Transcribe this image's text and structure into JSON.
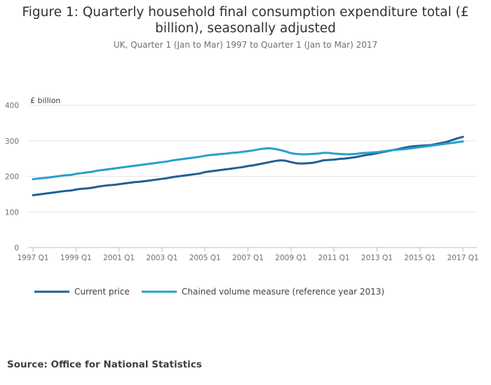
{
  "title": {
    "line1": "Figure 1: Quarterly household final consumption expenditure total (£",
    "line2": "billion), seasonally adjusted"
  },
  "subtitle": "UK, Quarter 1 (Jan to Mar) 1997 to Quarter 1 (Jan to Mar) 2017",
  "source": "Source: Office for National Statistics",
  "chart_data": {
    "type": "line",
    "title": "Figure 1: Quarterly household final consumption expenditure total (£ billion), seasonally adjusted",
    "subtitle": "UK, Quarter 1 (Jan to Mar) 1997 to Quarter 1 (Jan to Mar) 2017",
    "ylabel": "£ billion",
    "ylim": [
      0,
      400
    ],
    "yticks": [
      0,
      100,
      200,
      300,
      400
    ],
    "xticks": [
      "1997 Q1",
      "1999 Q1",
      "2001 Q1",
      "2003 Q1",
      "2005 Q1",
      "2007 Q1",
      "2009 Q1",
      "2011 Q1",
      "2013 Q1",
      "2015 Q1",
      "2017 Q1"
    ],
    "grid": true,
    "legend": "bottom",
    "x": [
      "1997 Q1",
      "1997 Q2",
      "1997 Q3",
      "1997 Q4",
      "1998 Q1",
      "1998 Q2",
      "1998 Q3",
      "1998 Q4",
      "1999 Q1",
      "1999 Q2",
      "1999 Q3",
      "1999 Q4",
      "2000 Q1",
      "2000 Q2",
      "2000 Q3",
      "2000 Q4",
      "2001 Q1",
      "2001 Q2",
      "2001 Q3",
      "2001 Q4",
      "2002 Q1",
      "2002 Q2",
      "2002 Q3",
      "2002 Q4",
      "2003 Q1",
      "2003 Q2",
      "2003 Q3",
      "2003 Q4",
      "2004 Q1",
      "2004 Q2",
      "2004 Q3",
      "2004 Q4",
      "2005 Q1",
      "2005 Q2",
      "2005 Q3",
      "2005 Q4",
      "2006 Q1",
      "2006 Q2",
      "2006 Q3",
      "2006 Q4",
      "2007 Q1",
      "2007 Q2",
      "2007 Q3",
      "2007 Q4",
      "2008 Q1",
      "2008 Q2",
      "2008 Q3",
      "2008 Q4",
      "2009 Q1",
      "2009 Q2",
      "2009 Q3",
      "2009 Q4",
      "2010 Q1",
      "2010 Q2",
      "2010 Q3",
      "2010 Q4",
      "2011 Q1",
      "2011 Q2",
      "2011 Q3",
      "2011 Q4",
      "2012 Q1",
      "2012 Q2",
      "2012 Q3",
      "2012 Q4",
      "2013 Q1",
      "2013 Q2",
      "2013 Q3",
      "2013 Q4",
      "2014 Q1",
      "2014 Q2",
      "2014 Q3",
      "2014 Q4",
      "2015 Q1",
      "2015 Q2",
      "2015 Q3",
      "2015 Q4",
      "2016 Q1",
      "2016 Q2",
      "2016 Q3",
      "2016 Q4",
      "2017 Q1"
    ],
    "series": [
      {
        "name": "Current price",
        "color": "#206095",
        "values": [
          147,
          149,
          151,
          153,
          155,
          157,
          159,
          160,
          163,
          165,
          166,
          168,
          171,
          173,
          175,
          176,
          178,
          180,
          182,
          184,
          185,
          187,
          189,
          191,
          193,
          195,
          198,
          200,
          202,
          204,
          206,
          208,
          212,
          214,
          216,
          218,
          220,
          222,
          224,
          226,
          229,
          231,
          234,
          237,
          240,
          243,
          245,
          244,
          240,
          237,
          236,
          237,
          238,
          241,
          245,
          246,
          247,
          249,
          250,
          252,
          254,
          257,
          260,
          262,
          265,
          268,
          271,
          274,
          277,
          280,
          283,
          285,
          286,
          287,
          288,
          291,
          294,
          297,
          302,
          307,
          311
        ]
      },
      {
        "name": "Chained volume measure (reference year 2013)",
        "color": "#27A0CC",
        "values": [
          192,
          194,
          195,
          197,
          199,
          201,
          203,
          204,
          207,
          209,
          211,
          213,
          216,
          218,
          220,
          222,
          224,
          226,
          228,
          230,
          232,
          234,
          236,
          238,
          240,
          242,
          245,
          247,
          249,
          251,
          253,
          255,
          258,
          260,
          261,
          263,
          264,
          266,
          267,
          269,
          271,
          273,
          276,
          278,
          279,
          277,
          274,
          270,
          265,
          263,
          262,
          262,
          263,
          264,
          266,
          266,
          264,
          263,
          262,
          262,
          263,
          265,
          266,
          267,
          268,
          270,
          272,
          274,
          275,
          276,
          278,
          280,
          282,
          284,
          286,
          288,
          290,
          292,
          294,
          296,
          298
        ]
      }
    ]
  }
}
